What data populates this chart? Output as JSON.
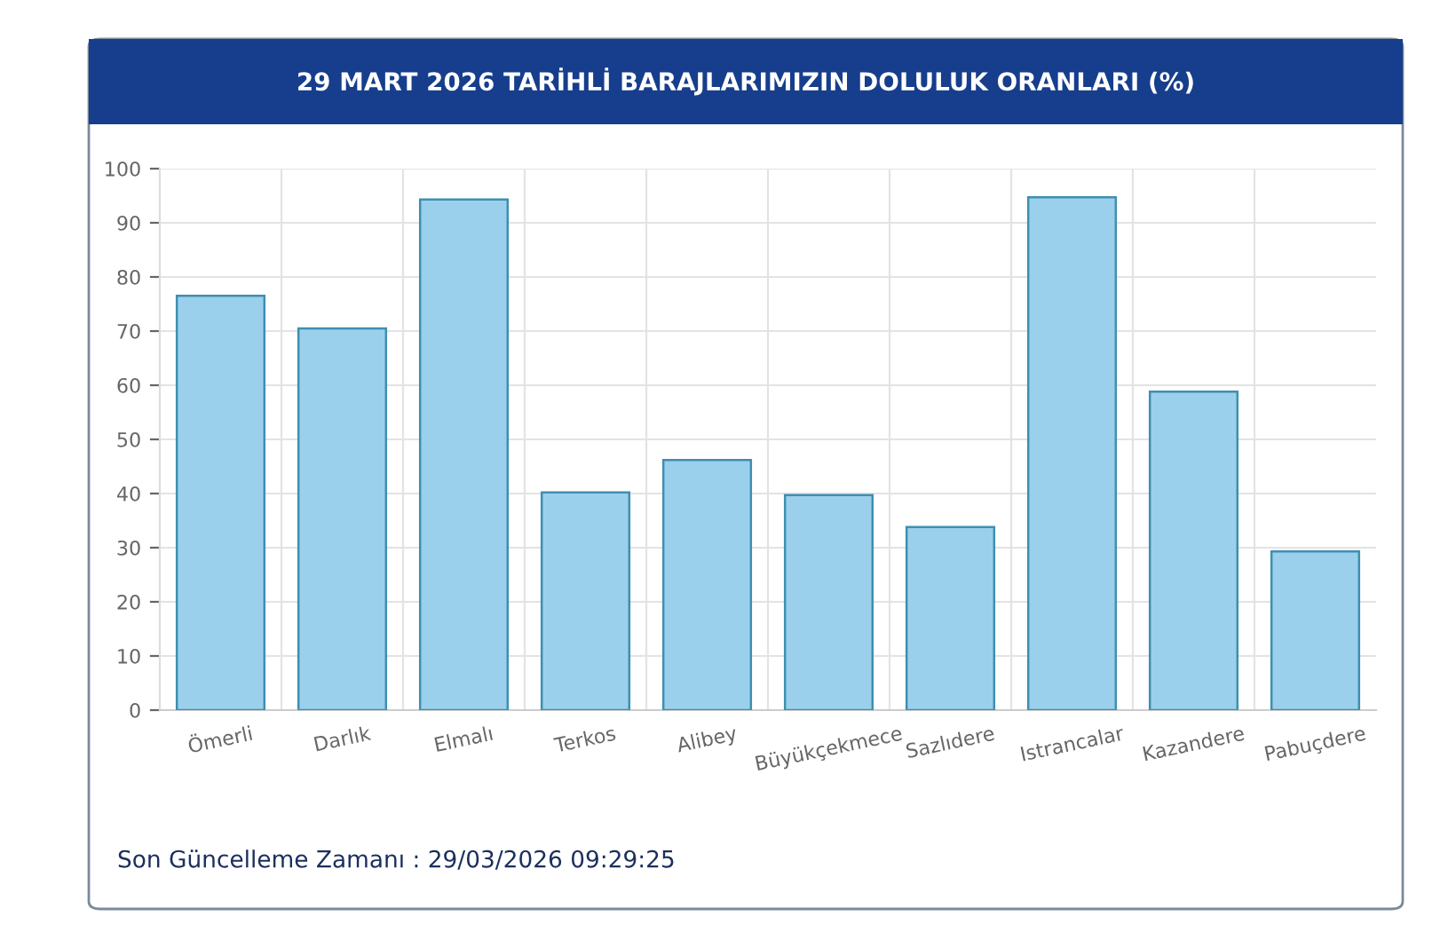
{
  "chart_data": {
    "type": "bar",
    "title": "29 MART 2026 TARİHLİ BARAJLARIMIZIN DOLULUK ORANLARI (%)",
    "categories": [
      "Ömerli",
      "Darlık",
      "Elmalı",
      "Terkos",
      "Alibey",
      "Büyükçekmece",
      "Sazlıdere",
      "Istrancalar",
      "Kazandere",
      "Pabuçdere"
    ],
    "values": [
      76.5,
      70.5,
      94.3,
      40.2,
      46.2,
      39.7,
      33.8,
      94.7,
      58.8,
      29.3
    ],
    "color": "#9bd0ec",
    "ylim": [
      0,
      100
    ],
    "yticks": [
      0,
      10,
      20,
      30,
      40,
      50,
      60,
      70,
      80,
      90,
      100
    ],
    "grid": true,
    "legend": false,
    "annotations": [
      "Son Güncelleme Zamanı : 29/03/2026 09:29:25"
    ]
  }
}
